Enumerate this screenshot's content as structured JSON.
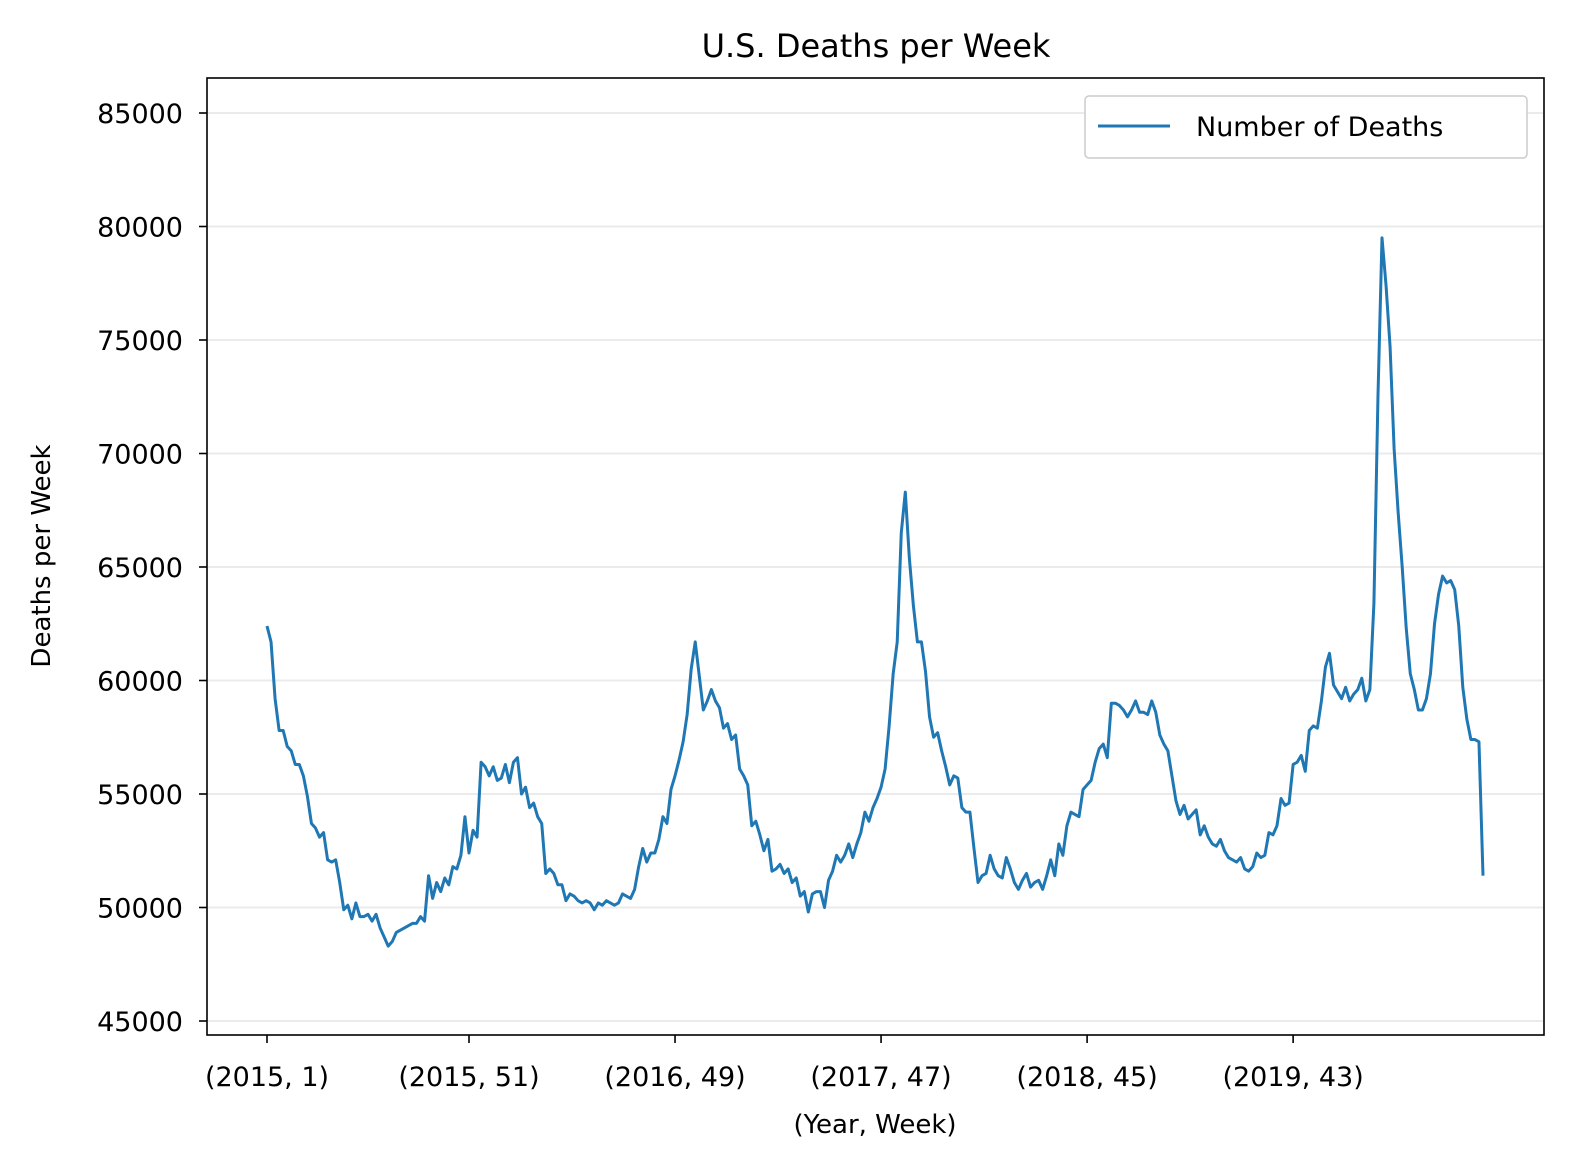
{
  "chart_data": {
    "type": "line",
    "title": "U.S. Deaths per Week",
    "xlabel": "(Year, Week)",
    "ylabel": "Deaths per Week",
    "ylim": [
      44500,
      86000
    ],
    "yticks": [
      45000,
      50000,
      55000,
      60000,
      65000,
      70000,
      75000,
      80000,
      85000
    ],
    "xticks": [
      {
        "index": 0,
        "label": "(2015, 1)"
      },
      {
        "index": 50,
        "label": "(2015, 51)"
      },
      {
        "index": 101,
        "label": "(2016, 49)"
      },
      {
        "index": 152,
        "label": "(2017, 47)"
      },
      {
        "index": 203,
        "label": "(2018, 45)"
      },
      {
        "index": 254,
        "label": "(2019, 43)"
      }
    ],
    "grid": {
      "y": true,
      "x": false
    },
    "legend": {
      "position": "top-right",
      "entries": [
        "Number of Deaths"
      ]
    },
    "series": [
      {
        "name": "Number of Deaths",
        "color": "#1f77b4",
        "values": [
          62400,
          61700,
          59200,
          57800,
          57800,
          57100,
          56900,
          56300,
          56300,
          55800,
          54900,
          53700,
          53500,
          53100,
          53300,
          52100,
          52000,
          52100,
          51100,
          49900,
          50100,
          49500,
          50200,
          49600,
          49600,
          49700,
          49400,
          49700,
          49100,
          48700,
          48300,
          48500,
          48900,
          49000,
          49100,
          49200,
          49300,
          49300,
          49600,
          49400,
          51400,
          50400,
          51100,
          50700,
          51300,
          51000,
          51800,
          51700,
          52300,
          54000,
          52400,
          53400,
          53100,
          56400,
          56200,
          55800,
          56200,
          55600,
          55700,
          56300,
          55500,
          56400,
          56600,
          55000,
          55300,
          54400,
          54600,
          54000,
          53700,
          51500,
          51700,
          51500,
          51000,
          51000,
          50300,
          50600,
          50500,
          50300,
          50200,
          50300,
          50200,
          49900,
          50200,
          50100,
          50300,
          50200,
          50100,
          50200,
          50600,
          50500,
          50400,
          50800,
          51800,
          52600,
          52000,
          52400,
          52400,
          53000,
          54000,
          53700,
          55200,
          55800,
          56500,
          57300,
          58500,
          60500,
          61700,
          60200,
          58700,
          59100,
          59600,
          59100,
          58800,
          57900,
          58100,
          57400,
          57600,
          56100,
          55800,
          55400,
          53600,
          53800,
          53200,
          52500,
          53000,
          51600,
          51700,
          51900,
          51500,
          51700,
          51100,
          51300,
          50500,
          50700,
          49800,
          50600,
          50700,
          50700,
          50000,
          51200,
          51600,
          52300,
          52000,
          52300,
          52800,
          52200,
          52800,
          53300,
          54200,
          53800,
          54400,
          54800,
          55300,
          56100,
          58000,
          60300,
          61700,
          66500,
          68300,
          65400,
          63300,
          61700,
          61700,
          60400,
          58400,
          57500,
          57700,
          56900,
          56200,
          55400,
          55800,
          55700,
          54400,
          54200,
          54200,
          52600,
          51100,
          51400,
          51500,
          52300,
          51700,
          51400,
          51300,
          52200,
          51700,
          51100,
          50800,
          51200,
          51500,
          50900,
          51100,
          51200,
          50800,
          51400,
          52100,
          51400,
          52800,
          52300,
          53600,
          54200,
          54100,
          54000,
          55200,
          55400,
          55600,
          56400,
          57000,
          57200,
          56600,
          59000,
          59000,
          58900,
          58700,
          58400,
          58700,
          59100,
          58600,
          58600,
          58500,
          59100,
          58600,
          57600,
          57200,
          56900,
          55800,
          54700,
          54100,
          54500,
          53900,
          54100,
          54300,
          53200,
          53600,
          53100,
          52800,
          52700,
          53000,
          52500,
          52200,
          52100,
          52000,
          52200,
          51700,
          51600,
          51800,
          52400,
          52200,
          52300,
          53300,
          53200,
          53600,
          54800,
          54500,
          54600,
          56300,
          56400,
          56700,
          56000,
          57800,
          58000,
          57900,
          59100,
          60600,
          61200,
          59800,
          59500,
          59200,
          59700,
          59100,
          59400,
          59600,
          60100,
          59100,
          59600,
          63400,
          72500,
          79500,
          77400,
          74700,
          70200,
          67400,
          65000,
          62300,
          60300,
          59600,
          58700,
          58700,
          59200,
          60300,
          62500,
          63800,
          64600,
          64300,
          64400,
          64000,
          62400,
          59700,
          58300,
          57400,
          57400,
          57300,
          51400
        ]
      }
    ]
  }
}
